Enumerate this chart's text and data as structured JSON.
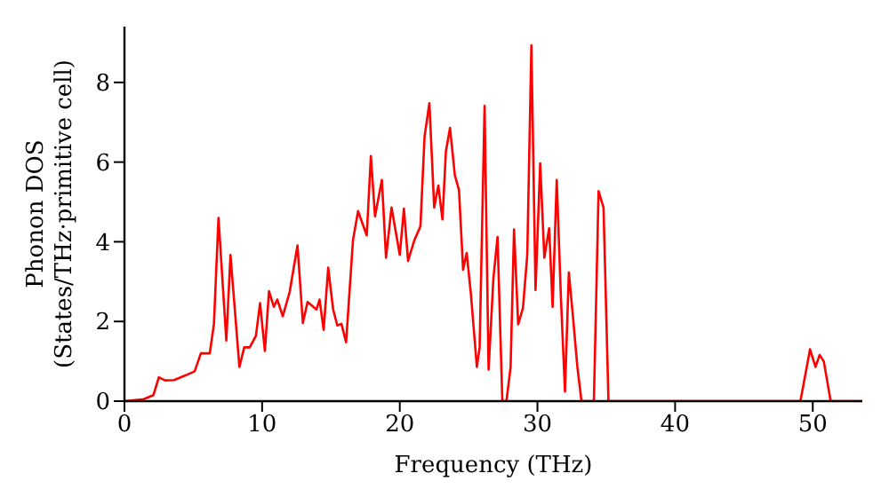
{
  "chart_data": {
    "type": "line",
    "xlabel": "Frequency (THz)",
    "ylabel": "Phonon DOS\n(States/THz·primitive cell)",
    "x": [
      0,
      1.4,
      2.1,
      2.5,
      2.95,
      3.6,
      4.46,
      5.1,
      5.55,
      6.2,
      6.5,
      6.83,
      7.4,
      7.7,
      8.35,
      8.7,
      9.1,
      9.55,
      9.85,
      10.2,
      10.5,
      10.85,
      11.1,
      11.5,
      12.0,
      12.57,
      12.96,
      13.3,
      13.95,
      14.17,
      14.47,
      14.8,
      15.16,
      15.46,
      15.76,
      16.1,
      16.6,
      16.97,
      17.6,
      17.9,
      18.2,
      18.7,
      19.0,
      19.4,
      20.0,
      20.3,
      20.6,
      21.06,
      21.5,
      21.8,
      22.15,
      22.5,
      22.8,
      23.1,
      23.35,
      23.65,
      24.0,
      24.3,
      24.6,
      24.86,
      25.16,
      25.6,
      25.8,
      26.16,
      26.45,
      26.8,
      27.1,
      27.45,
      27.75,
      28.05,
      28.3,
      28.6,
      28.95,
      29.26,
      29.56,
      29.86,
      30.2,
      30.5,
      30.85,
      31.1,
      31.4,
      31.7,
      32.0,
      32.28,
      32.6,
      32.9,
      33.2,
      34.1,
      34.44,
      34.8,
      35.16,
      49.1,
      49.8,
      50.2,
      50.5,
      50.8,
      51.3,
      53.6
    ],
    "series": [
      {
        "color": "#ff0000",
        "values": [
          0,
          0.05,
          0.15,
          0.6,
          0.52,
          0.53,
          0.65,
          0.75,
          1.2,
          1.2,
          1.94,
          4.6,
          1.52,
          3.67,
          0.86,
          1.35,
          1.35,
          1.64,
          2.46,
          1.26,
          2.76,
          2.37,
          2.55,
          2.13,
          2.74,
          3.91,
          1.96,
          2.49,
          2.3,
          2.55,
          1.79,
          3.35,
          2.3,
          1.9,
          1.94,
          1.48,
          4.04,
          4.77,
          4.16,
          6.15,
          4.64,
          5.55,
          3.6,
          4.86,
          3.67,
          4.83,
          3.52,
          4.04,
          4.39,
          6.64,
          7.48,
          4.86,
          5.41,
          4.56,
          6.27,
          6.86,
          5.67,
          5.3,
          3.3,
          3.72,
          2.71,
          0.86,
          1.35,
          7.41,
          0.79,
          3.08,
          4.12,
          0,
          0,
          0.86,
          4.31,
          1.93,
          2.34,
          3.67,
          8.93,
          2.79,
          5.97,
          3.6,
          4.34,
          2.37,
          5.55,
          2.64,
          0.24,
          3.23,
          2.04,
          0.86,
          0,
          0,
          5.27,
          4.86,
          0,
          0,
          1.3,
          0.86,
          1.16,
          1.0,
          0,
          0
        ]
      }
    ],
    "xlim": [
      0,
      53.6
    ],
    "ylim": [
      0,
      9.4
    ],
    "xticks": [
      0,
      10,
      20,
      30,
      40,
      50
    ],
    "yticks": [
      0,
      2,
      4,
      6,
      8
    ],
    "grid": false,
    "legend": false,
    "marker": "none",
    "line_style": "solid"
  }
}
